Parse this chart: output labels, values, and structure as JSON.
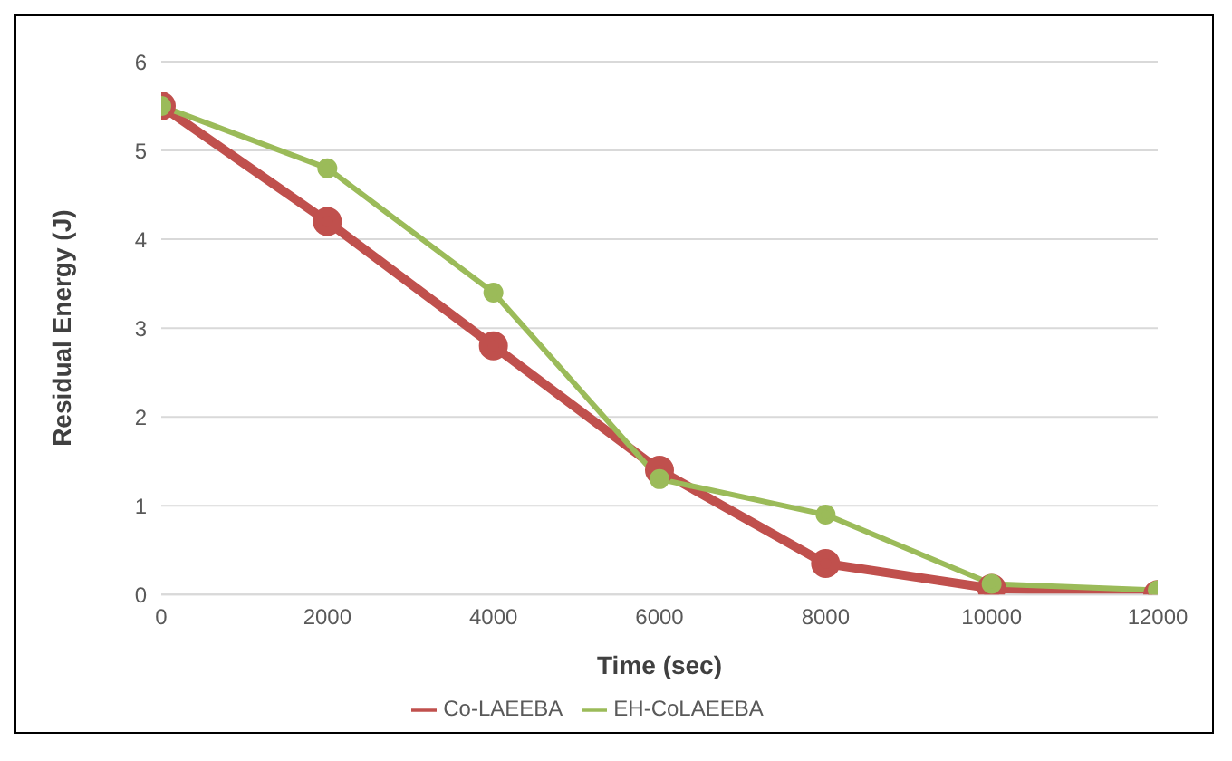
{
  "chart_data": {
    "type": "line",
    "xlabel": "Time (sec)",
    "ylabel": "Residual Energy (J)",
    "x": [
      0,
      2000,
      4000,
      6000,
      8000,
      10000,
      12000
    ],
    "series": [
      {
        "name": "Co-LAEEBA",
        "color": "#c0504d",
        "values": [
          5.5,
          4.2,
          2.8,
          1.4,
          0.35,
          0.07,
          0.0
        ]
      },
      {
        "name": "EH-CoLAEEBA",
        "color": "#9bbb59",
        "values": [
          5.5,
          4.8,
          3.4,
          1.3,
          0.9,
          0.12,
          0.05
        ]
      }
    ],
    "xlim": [
      0,
      12000
    ],
    "xticks": [
      0,
      2000,
      4000,
      6000,
      8000,
      10000,
      12000
    ],
    "ylim": [
      0,
      6
    ],
    "yticks": [
      0,
      1,
      2,
      3,
      4,
      5,
      6
    ],
    "grid": "y",
    "legend": "bottom",
    "marker": "circle",
    "line_style": "solid"
  }
}
